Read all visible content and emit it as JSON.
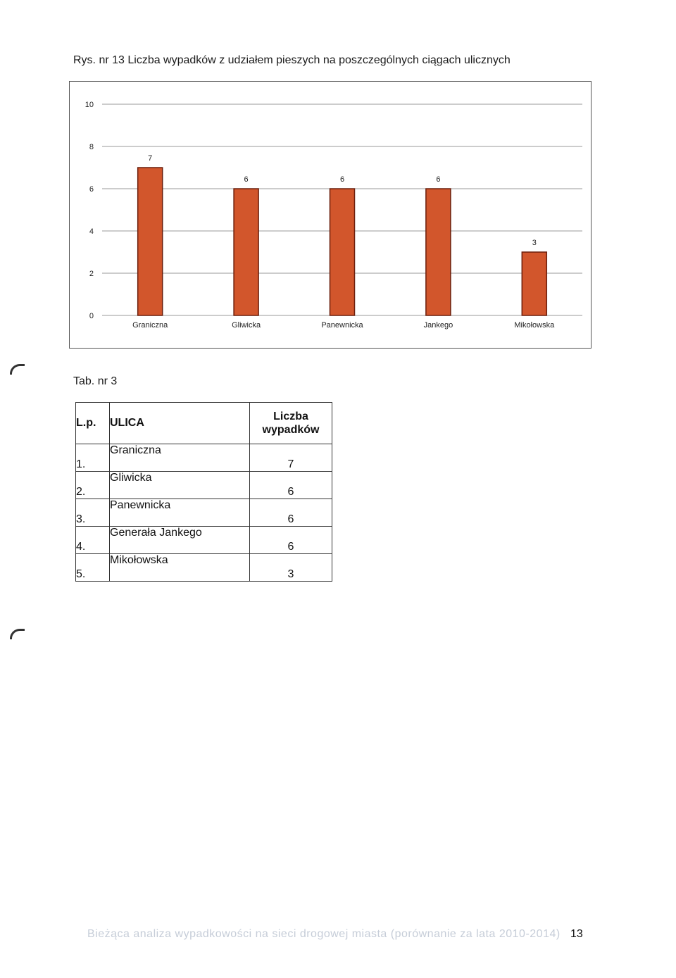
{
  "figure": {
    "caption": "Rys. nr 13 Liczba wypadków z udziałem pieszych na poszczególnych ciągach ulicznych"
  },
  "chart_data": {
    "type": "bar",
    "categories": [
      "Graniczna",
      "Gliwicka",
      "Panewnicka",
      "Jankego",
      "Mikołowska"
    ],
    "values": [
      7,
      6,
      6,
      6,
      3
    ],
    "data_labels": [
      "7",
      "6",
      "6",
      "6",
      "3"
    ],
    "ylim": [
      0,
      10
    ],
    "yticks": [
      0,
      2,
      4,
      6,
      8,
      10
    ],
    "ytick_labels": [
      "0",
      "2",
      "4",
      "6",
      "8",
      "10"
    ],
    "grid": true,
    "bar_color": "#d2562c",
    "bar_edge_color": "#6b1e0c",
    "xlabel": "",
    "ylabel": ""
  },
  "table": {
    "title": "Tab. nr 3",
    "headers": {
      "lp": "L.p.",
      "ulica": "ULICA",
      "liczba_line1": "Liczba",
      "liczba_line2": "wypadków"
    },
    "rows": [
      {
        "lp": "1.",
        "ulica": "Graniczna",
        "liczba": "7"
      },
      {
        "lp": "2.",
        "ulica": "Gliwicka",
        "liczba": "6"
      },
      {
        "lp": "3.",
        "ulica": "Panewnicka",
        "liczba": "6"
      },
      {
        "lp": "4.",
        "ulica": "Generała Jankego",
        "liczba": "6"
      },
      {
        "lp": "5.",
        "ulica": "Mikołowska",
        "liczba": "3"
      }
    ]
  },
  "footer": {
    "text": "Bieżąca analiza wypadkowości na sieci drogowej miasta (porównanie za lata 2010-2014)",
    "page_number": "13"
  }
}
